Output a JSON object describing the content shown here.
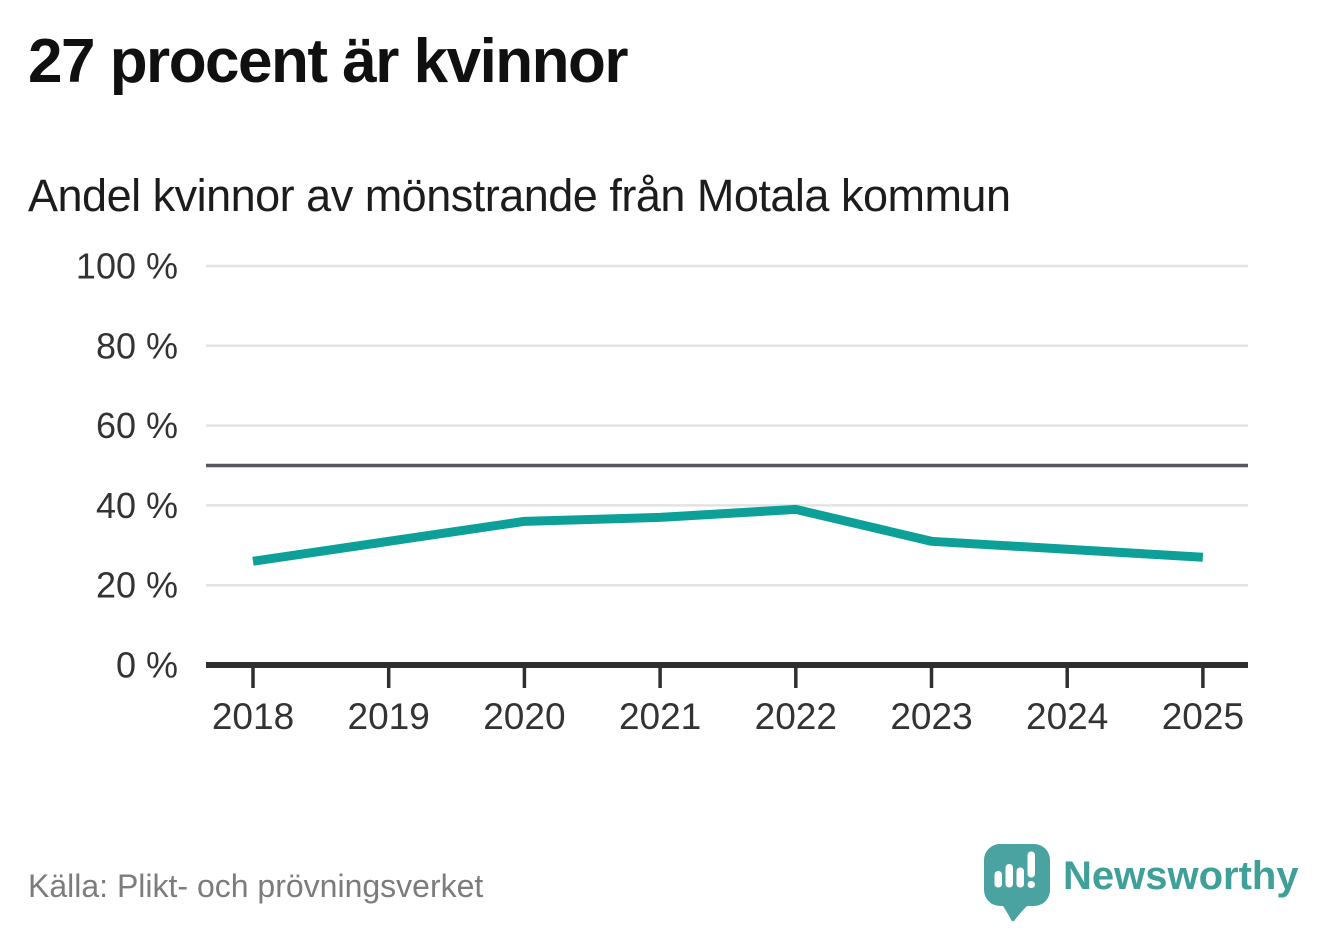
{
  "header": {
    "title": "27 procent är kvinnor",
    "subtitle": "Andel kvinnor av mönstrande från Motala kommun"
  },
  "footer": {
    "source": "Källa: Plikt- och prövningsverket",
    "brand": "Newsworthy",
    "logo_icon": "speech-bubble-bar-chart-icon"
  },
  "colors": {
    "line": "#0da099",
    "grid": "#e3e3e3",
    "reference_line": "#55565e",
    "axis": "#2f2f2f",
    "tick_label": "#333333",
    "title": "#101010",
    "source_text": "#7c7c7c",
    "brand_teal": "#3f9f99",
    "logo_mark_fill": "#4aa3a0",
    "logo_glyph_fill": "#ffffff"
  },
  "chart_data": {
    "type": "line",
    "title": "27 procent är kvinnor",
    "subtitle": "Andel kvinnor av mönstrande från Motala kommun",
    "x": [
      "2018",
      "2019",
      "2020",
      "2021",
      "2022",
      "2023",
      "2024",
      "2025"
    ],
    "series": [
      {
        "name": "Andel kvinnor av mönstrande",
        "values": [
          26,
          31,
          36,
          37,
          39,
          31,
          29,
          27
        ]
      }
    ],
    "unit": "%",
    "ylim": [
      0,
      100
    ],
    "yticks": [
      {
        "value": 0,
        "label": "0 %"
      },
      {
        "value": 20,
        "label": "20 %"
      },
      {
        "value": 40,
        "label": "40 %"
      },
      {
        "value": 60,
        "label": "60 %"
      },
      {
        "value": 80,
        "label": "80 %"
      },
      {
        "value": 100,
        "label": "100 %"
      }
    ],
    "reference_line": 50,
    "grid": true,
    "legend": false,
    "markers": false
  }
}
